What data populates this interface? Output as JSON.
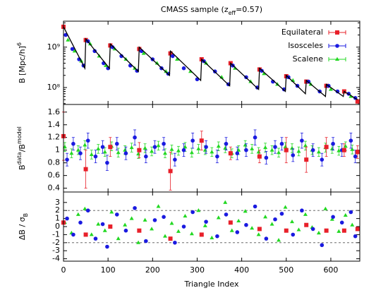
{
  "chart_data": [
    {
      "type": "line",
      "title": [
        {
          "text": "CMASS sample (z"
        },
        {
          "text": "eff",
          "shift": "sub"
        },
        {
          "text": "=0.57)"
        }
      ],
      "ylabel": [
        {
          "text": "B [Mpc/h]"
        },
        {
          "text": "6",
          "shift": "super"
        }
      ],
      "log_y": true,
      "xlim": [
        0,
        665
      ],
      "ylim": [
        38000000,
        4400000000
      ],
      "xticks": [
        0,
        100,
        200,
        300,
        400,
        500,
        600
      ],
      "show_xtick_labels": false,
      "yticks": [
        {
          "value": 100000000,
          "label": "10⁸"
        },
        {
          "value": 1000000000,
          "label": "10⁹"
        }
      ],
      "legend": "upper right",
      "model": {
        "color": "#000000",
        "x": [
          0,
          48,
          50,
          103,
          105,
          168,
          170,
          238,
          240,
          308,
          310,
          373,
          375,
          438,
          440,
          498,
          500,
          543,
          545,
          588,
          590,
          628,
          630,
          660
        ],
        "values": [
          3200000000,
          300000000,
          1600000000,
          300000000,
          1200000000,
          250000000,
          1000000000,
          200000000,
          800000000,
          150000000,
          500000000,
          110000000,
          400000000,
          90000000,
          300000000,
          80000000,
          200000000,
          70000000,
          150000000,
          60000000,
          120000000,
          60000000,
          80000000,
          50000000
        ]
      },
      "series": [
        {
          "name": "Equilateral",
          "color": "#e8202a",
          "marker": "square",
          "x": [
            0,
            50,
            105,
            170,
            240,
            310,
            375,
            440,
            500,
            545,
            590,
            630,
            660
          ],
          "values": [
            3200000000,
            1500000000,
            1100000000,
            900000000,
            700000000,
            500000000,
            400000000,
            280000000,
            190000000,
            140000000,
            110000000,
            80000000,
            45000000
          ]
        },
        {
          "name": "Isosceles",
          "color": "#1a1ae0",
          "marker": "circle",
          "x": [
            5,
            20,
            35,
            45,
            55,
            70,
            90,
            100,
            110,
            130,
            150,
            165,
            175,
            200,
            220,
            235,
            245,
            270,
            300,
            315,
            340,
            370,
            380,
            410,
            435,
            445,
            470,
            495,
            505,
            525,
            550,
            575,
            595,
            615,
            640,
            655
          ],
          "values": [
            2000000000,
            900000000,
            500000000,
            350000000,
            1400000000,
            800000000,
            400000000,
            300000000,
            1000000000,
            600000000,
            350000000,
            260000000,
            800000000,
            500000000,
            300000000,
            220000000,
            600000000,
            300000000,
            160000000,
            450000000,
            250000000,
            120000000,
            350000000,
            180000000,
            100000000,
            260000000,
            140000000,
            90000000,
            180000000,
            110000000,
            140000000,
            80000000,
            110000000,
            80000000,
            70000000,
            55000000
          ]
        },
        {
          "name": "Scalene",
          "color": "#22d822",
          "marker": "triangle",
          "x": [
            10,
            25,
            40,
            60,
            80,
            95,
            115,
            140,
            160,
            180,
            210,
            230,
            255,
            285,
            320,
            355,
            385,
            420,
            450,
            480,
            515,
            555,
            600,
            645
          ],
          "values": [
            1500000000,
            800000000,
            450000000,
            1200000000,
            600000000,
            350000000,
            900000000,
            500000000,
            300000000,
            700000000,
            400000000,
            250000000,
            500000000,
            250000000,
            400000000,
            180000000,
            300000000,
            140000000,
            220000000,
            120000000,
            150000000,
            120000000,
            90000000,
            60000000
          ]
        }
      ]
    },
    {
      "type": "scatter",
      "ylabel": [
        {
          "text": "B"
        },
        {
          "text": "data",
          "shift": "super"
        },
        {
          "text": "/B"
        },
        {
          "text": "model",
          "shift": "super"
        }
      ],
      "xlim": [
        0,
        665
      ],
      "ylim": [
        0.34,
        1.72
      ],
      "xticks": [
        0,
        100,
        200,
        300,
        400,
        500,
        600
      ],
      "show_xtick_labels": false,
      "yticks": [
        0.4,
        0.6,
        0.8,
        1,
        1.2,
        1.4,
        1.6
      ],
      "series": [
        {
          "name": "Scalene",
          "color": "#22d822",
          "marker": "triangle",
          "x": [
            3,
            18,
            33,
            48,
            63,
            78,
            93,
            108,
            123,
            138,
            153,
            168,
            183,
            198,
            213,
            228,
            243,
            258,
            273,
            288,
            303,
            318,
            333,
            348,
            363,
            378,
            393,
            408,
            423,
            438,
            453,
            468,
            483,
            498,
            513,
            528,
            543,
            558,
            573,
            588,
            603,
            618,
            633,
            648
          ],
          "values": [
            1.05,
            0.95,
            1.0,
            1.08,
            0.93,
            1.02,
            0.97,
            1.06,
            0.96,
            1.0,
            1.04,
            0.94,
            1.03,
            0.98,
            1.07,
            0.95,
            1.01,
            0.99,
            1.05,
            0.96,
            1.02,
            1.0,
            0.97,
            1.06,
            1.03,
            0.95,
            1.0,
            1.08,
            1.02,
            0.97,
            1.04,
            1.0,
            0.96,
            1.05,
            1.03,
            0.98,
            1.07,
            1.0,
            0.97,
            1.04,
            1.02,
            0.99,
            1.06,
            1.01
          ],
          "errors": [
            0.07,
            0.07,
            0.07,
            0.07,
            0.07,
            0.07,
            0.07,
            0.07,
            0.07,
            0.07,
            0.07,
            0.07,
            0.07,
            0.07,
            0.07,
            0.07,
            0.07,
            0.07,
            0.07,
            0.07,
            0.07,
            0.07,
            0.07,
            0.07,
            0.07,
            0.07,
            0.07,
            0.07,
            0.07,
            0.07,
            0.07,
            0.07,
            0.07,
            0.07,
            0.07,
            0.07,
            0.07,
            0.07,
            0.07,
            0.07,
            0.07,
            0.07,
            0.07,
            0.07
          ]
        },
        {
          "name": "Isosceles",
          "color": "#1a1ae0",
          "marker": "circle",
          "x": [
            8,
            22,
            38,
            55,
            72,
            88,
            98,
            120,
            140,
            160,
            185,
            205,
            225,
            250,
            270,
            290,
            320,
            345,
            365,
            390,
            410,
            430,
            455,
            475,
            490,
            515,
            535,
            560,
            580,
            605,
            625,
            645,
            655
          ],
          "values": [
            0.85,
            1.1,
            0.95,
            1.15,
            0.9,
            1.05,
            0.8,
            1.1,
            0.95,
            1.2,
            0.9,
            1.05,
            1.1,
            0.85,
            1.0,
            1.15,
            1.05,
            0.9,
            1.1,
            0.95,
            1.0,
            1.2,
            0.88,
            1.05,
            1.1,
            0.92,
            1.15,
            1.0,
            0.85,
            1.1,
            1.0,
            1.15,
            0.9
          ],
          "errors": [
            0.1,
            0.1,
            0.1,
            0.12,
            0.1,
            0.1,
            0.12,
            0.1,
            0.1,
            0.12,
            0.1,
            0.1,
            0.1,
            0.1,
            0.1,
            0.12,
            0.1,
            0.1,
            0.1,
            0.1,
            0.1,
            0.12,
            0.1,
            0.1,
            0.1,
            0.1,
            0.12,
            0.1,
            0.1,
            0.1,
            0.1,
            0.12,
            0.1
          ]
        },
        {
          "name": "Equilateral",
          "color": "#e8202a",
          "marker": "square",
          "x": [
            0,
            50,
            105,
            170,
            240,
            310,
            375,
            440,
            500,
            545,
            590,
            630,
            660
          ],
          "values": [
            1.22,
            0.7,
            1.05,
            1.0,
            0.67,
            1.15,
            0.95,
            0.9,
            1.0,
            0.85,
            1.05,
            1.0,
            0.97
          ],
          "errors": [
            0.38,
            0.3,
            0.15,
            0.12,
            0.3,
            0.15,
            0.1,
            0.1,
            0.2,
            0.2,
            0.15,
            0.1,
            0.1
          ]
        }
      ]
    },
    {
      "type": "scatter",
      "ylabel": [
        {
          "text": "ΔB / σ"
        },
        {
          "text": "B",
          "shift": "sub"
        }
      ],
      "xlabel": "Triangle Index",
      "xlim": [
        0,
        665
      ],
      "ylim": [
        -4.3,
        4.3
      ],
      "xticks": [
        0,
        100,
        200,
        300,
        400,
        500,
        600
      ],
      "show_xtick_labels": true,
      "yticks": [
        -4,
        -3,
        -2,
        -1,
        0,
        1,
        2,
        3
      ],
      "reference_lines": [
        -2,
        2
      ],
      "series": [
        {
          "name": "Scalene",
          "color": "#22d822",
          "marker": "triangle",
          "x": [
            3,
            18,
            33,
            48,
            63,
            78,
            93,
            108,
            123,
            138,
            153,
            168,
            183,
            198,
            213,
            228,
            243,
            258,
            273,
            288,
            303,
            318,
            333,
            348,
            363,
            378,
            393,
            408,
            423,
            438,
            453,
            468,
            483,
            498,
            513,
            528,
            543,
            558,
            573,
            588,
            603,
            618,
            633,
            648
          ],
          "values": [
            0.5,
            -0.8,
            1.5,
            2.2,
            -1,
            0.3,
            -0.5,
            1.8,
            -1.5,
            0.2,
            1,
            -2,
            0.8,
            -0.3,
            2.5,
            -1.2,
            0.4,
            -0.6,
            1.3,
            -0.9,
            2,
            0.1,
            -1.4,
            1.1,
            3,
            -0.5,
            0.7,
            1.9,
            -0.2,
            -1,
            1.2,
            0.3,
            -1.7,
            2.4,
            0.6,
            -0.4,
            1.5,
            -0.1,
            -0.8,
            2.2,
            0.9,
            -0.6,
            1.4,
            0.2
          ]
        },
        {
          "name": "Isosceles",
          "color": "#1a1ae0",
          "marker": "circle",
          "x": [
            8,
            22,
            38,
            55,
            72,
            88,
            98,
            120,
            140,
            160,
            185,
            205,
            225,
            250,
            270,
            290,
            320,
            345,
            365,
            390,
            410,
            430,
            455,
            475,
            490,
            515,
            535,
            560,
            580,
            605,
            625,
            645,
            655
          ],
          "values": [
            1,
            -1,
            0.5,
            2,
            -1.5,
            0.3,
            -2.5,
            1.5,
            -0.5,
            2.3,
            -1.8,
            0.8,
            1.2,
            -2,
            0,
            1.8,
            0.6,
            -1.2,
            1.5,
            -0.7,
            0.2,
            2.5,
            -1.5,
            0.9,
            1.6,
            -1,
            2,
            -0.3,
            -2.3,
            1.2,
            0.5,
            1.8,
            -1.2
          ]
        },
        {
          "name": "Equilateral",
          "color": "#e8202a",
          "marker": "square",
          "x": [
            0,
            50,
            105,
            170,
            240,
            310,
            375,
            440,
            500,
            545,
            590,
            630,
            660
          ],
          "values": [
            0.5,
            -1,
            0,
            -0.5,
            -1.5,
            -1,
            0.5,
            -0.3,
            -0.5,
            0.2,
            -0.5,
            -0.5,
            -0.3
          ]
        }
      ]
    }
  ]
}
